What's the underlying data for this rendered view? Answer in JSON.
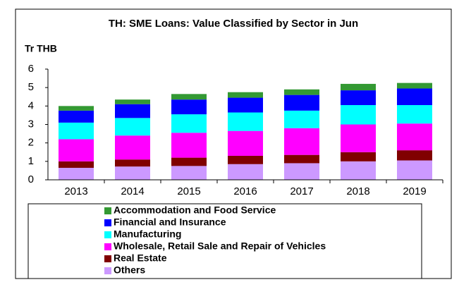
{
  "chart_data": {
    "type": "stacked_bar",
    "title": "TH: SME Loans: Value Classified by Sector in Jun",
    "y_label": "Tr THB",
    "categories": [
      "2013",
      "2014",
      "2015",
      "2016",
      "2017",
      "2018",
      "2019"
    ],
    "series": [
      {
        "name": "Others",
        "color": "#cc99ff",
        "values": [
          0.65,
          0.72,
          0.75,
          0.85,
          0.9,
          1.0,
          1.05
        ]
      },
      {
        "name": "Real Estate",
        "color": "#800000",
        "values": [
          0.35,
          0.38,
          0.45,
          0.45,
          0.45,
          0.5,
          0.55
        ]
      },
      {
        "name": "Wholesale, Retail Sale and Repair of Vehicles",
        "color": "#ff00ff",
        "values": [
          1.2,
          1.3,
          1.35,
          1.35,
          1.45,
          1.5,
          1.45
        ]
      },
      {
        "name": "Manufacturing",
        "color": "#00ffff",
        "values": [
          0.9,
          0.95,
          1.0,
          1.0,
          0.95,
          1.05,
          1.0
        ]
      },
      {
        "name": "Financial and Insurance",
        "color": "#0000ff",
        "values": [
          0.65,
          0.75,
          0.8,
          0.8,
          0.85,
          0.8,
          0.9
        ]
      },
      {
        "name": "Accommodation and Food Service",
        "color": "#339933",
        "values": [
          0.25,
          0.25,
          0.3,
          0.3,
          0.3,
          0.35,
          0.3
        ]
      }
    ],
    "ylim": [
      0,
      6
    ],
    "yticks": [
      0,
      1,
      2,
      3,
      4,
      5,
      6
    ]
  }
}
